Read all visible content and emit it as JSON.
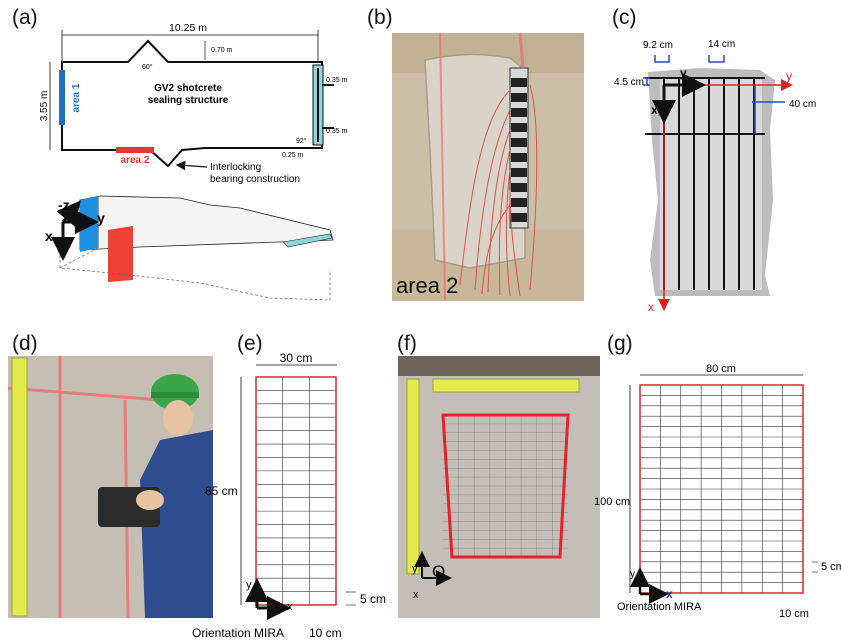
{
  "panel_labels": {
    "a": "(a)",
    "b": "(b)",
    "c": "(c)",
    "d": "(d)",
    "e": "(e)",
    "f": "(f)",
    "g": "(g)"
  },
  "panel_a": {
    "length": "10.25 m",
    "height": "3.55 m",
    "bump_height": "0.70 m",
    "angle": "60°",
    "right_dim_top": "0.35 m",
    "right_dim_mid": "0.35 m",
    "right_dim_bottom": "0.25 m",
    "right_angle": "92°",
    "structure_line1": "GV2 shotcrete",
    "structure_line2": "sealing structure",
    "area1": "area 1",
    "area2": "area 2",
    "bearing_line1": "Interlocking",
    "bearing_line2": "bearing construction",
    "axis_z": "-z",
    "axis_y": "y",
    "axis_x": "x",
    "colors": {
      "area1": "#1f6fc0",
      "area2": "#e03a2e",
      "cyan": "#8fd6d8"
    }
  },
  "panel_b": {
    "caption": "area 2"
  },
  "panel_c": {
    "dim_spacing_small": "9.2 cm",
    "dim_spacing_large": "14 cm",
    "dim_offset": "4.5 cm",
    "dim_depth": "40 cm",
    "axis_x": "x",
    "axis_y": "y",
    "colors": {
      "blue": "#2a4fa8",
      "red": "#e02020",
      "gray": "#bdbdbd"
    }
  },
  "panel_e": {
    "width": "30 cm",
    "height": "85 cm",
    "step_y": "5 cm",
    "step_x": "10 cm",
    "orientation": "Orientation MIRA",
    "axis_x": "x",
    "axis_y": "y"
  },
  "panel_f": {
    "origin": "O",
    "axis_x": "x",
    "axis_y": "y"
  },
  "panel_g": {
    "width": "80 cm",
    "height": "100 cm",
    "step_y": "5 cm",
    "step_x": "10 cm",
    "orientation": "Orientation MIRA",
    "axis_x": "x",
    "axis_y": "y"
  }
}
